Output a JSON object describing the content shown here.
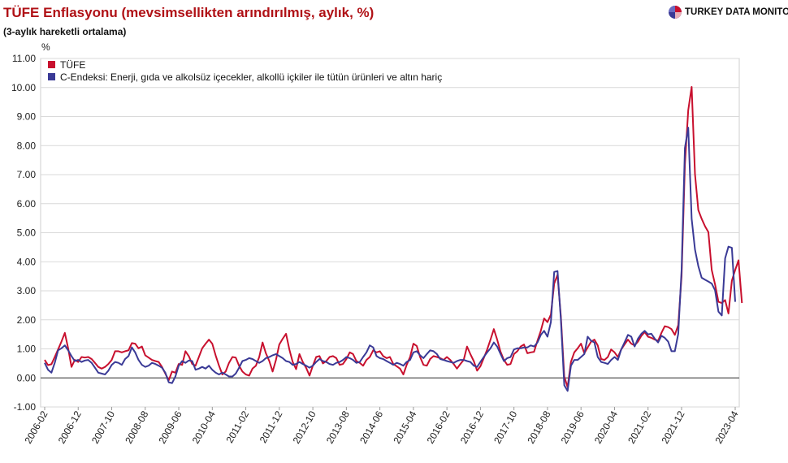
{
  "header": {
    "title": "TÜFE Enflasyonu (mevsimsellikten arındırılmış, aylık, %)",
    "subtitle": "(3-aylık hareketli ortalama)",
    "brand": "TURKEY DATA MONITOR"
  },
  "colors": {
    "tufe": "#c8102e",
    "core": "#3a3a96",
    "grid": "#d9d9d9",
    "zero": "#555555"
  },
  "chart_data": {
    "type": "line",
    "ylabel": "%",
    "xlabel": "",
    "ylim": [
      -1,
      11
    ],
    "yticks": [
      "11.00",
      "10.00",
      "9.00",
      "8.00",
      "7.00",
      "6.00",
      "5.00",
      "4.00",
      "3.00",
      "2.00",
      "1.00",
      "0.00",
      "-1.00"
    ],
    "x_start": "2006-02",
    "x_end": "2023-04",
    "xticks": [
      "2006-02",
      "2006-12",
      "2007-10",
      "2008-08",
      "2009-06",
      "2010-04",
      "2011-02",
      "2011-12",
      "2012-10",
      "2013-08",
      "2014-06",
      "2015-04",
      "2016-02",
      "2016-12",
      "2017-10",
      "2018-08",
      "2019-06",
      "2020-04",
      "2021-02",
      "2021-12",
      "2023-04"
    ],
    "grid": true,
    "legend_position": "top-left",
    "series": [
      {
        "name": "TÜFE",
        "color": "#c8102e",
        "values": [
          0.62,
          0.44,
          0.47,
          0.72,
          0.98,
          1.25,
          1.55,
          1.02,
          0.38,
          0.62,
          0.55,
          0.72,
          0.7,
          0.72,
          0.65,
          0.52,
          0.38,
          0.32,
          0.38,
          0.48,
          0.62,
          0.92,
          0.92,
          0.88,
          0.92,
          0.95,
          1.2,
          1.18,
          1.02,
          1.08,
          0.78,
          0.7,
          0.62,
          0.58,
          0.55,
          0.38,
          0.15,
          -0.08,
          0.22,
          0.18,
          0.48,
          0.45,
          0.92,
          0.75,
          0.48,
          0.42,
          0.72,
          1.02,
          1.18,
          1.32,
          1.18,
          0.78,
          0.42,
          0.12,
          0.22,
          0.52,
          0.72,
          0.7,
          0.42,
          0.22,
          0.12,
          0.08,
          0.32,
          0.42,
          0.72,
          1.22,
          0.85,
          0.58,
          0.22,
          0.62,
          1.15,
          1.35,
          1.52,
          0.98,
          0.55,
          0.3,
          0.82,
          0.55,
          0.35,
          0.08,
          0.42,
          0.72,
          0.75,
          0.5,
          0.58,
          0.72,
          0.75,
          0.68,
          0.45,
          0.48,
          0.65,
          0.88,
          0.82,
          0.58,
          0.52,
          0.42,
          0.62,
          0.72,
          0.95,
          0.88,
          0.92,
          0.75,
          0.68,
          0.72,
          0.48,
          0.4,
          0.32,
          0.12,
          0.45,
          0.72,
          1.18,
          1.1,
          0.72,
          0.45,
          0.42,
          0.65,
          0.75,
          0.72,
          0.68,
          0.62,
          0.72,
          0.62,
          0.48,
          0.32,
          0.48,
          0.62,
          1.08,
          0.82,
          0.58,
          0.25,
          0.4,
          0.68,
          0.98,
          1.32,
          1.68,
          1.32,
          0.9,
          0.62,
          0.45,
          0.48,
          0.82,
          0.92,
          1.08,
          1.15,
          0.85,
          0.88,
          0.9,
          1.28,
          1.62,
          2.05,
          1.92,
          2.18,
          3.25,
          3.55,
          2.12,
          0.05,
          -0.32,
          0.55,
          0.88,
          1.02,
          1.18,
          0.85,
          1.05,
          1.25,
          1.32,
          1.12,
          0.65,
          0.62,
          0.72,
          0.98,
          0.88,
          0.72,
          0.98,
          1.15,
          1.32,
          1.18,
          1.12,
          1.25,
          1.45,
          1.58,
          1.42,
          1.38,
          1.32,
          1.28,
          1.55,
          1.78,
          1.75,
          1.68,
          1.48,
          1.82,
          3.5,
          7.35,
          9.22,
          10.02,
          7.02,
          5.78,
          5.48,
          5.22,
          5.02,
          3.72,
          3.22,
          2.62,
          2.58,
          2.68,
          2.22,
          3.35,
          3.72,
          4.05,
          2.58
        ]
      },
      {
        "name": "C-Endeksi: Enerji, gıda ve alkolsüz içecekler, alkollü içkiler ile tütün ürünleri ve altın hariç",
        "color": "#3a3a96",
        "values": [
          0.52,
          0.28,
          0.18,
          0.52,
          0.95,
          1.02,
          1.12,
          0.95,
          0.75,
          0.58,
          0.62,
          0.55,
          0.6,
          0.62,
          0.52,
          0.35,
          0.18,
          0.15,
          0.12,
          0.25,
          0.45,
          0.55,
          0.52,
          0.45,
          0.65,
          0.75,
          1.05,
          0.88,
          0.62,
          0.45,
          0.38,
          0.42,
          0.52,
          0.48,
          0.42,
          0.35,
          0.18,
          -0.15,
          -0.18,
          0.05,
          0.42,
          0.58,
          0.52,
          0.6,
          0.58,
          0.28,
          0.32,
          0.38,
          0.32,
          0.42,
          0.28,
          0.18,
          0.12,
          0.18,
          0.12,
          0.05,
          0.05,
          0.15,
          0.35,
          0.58,
          0.62,
          0.68,
          0.65,
          0.58,
          0.52,
          0.58,
          0.68,
          0.72,
          0.78,
          0.82,
          0.75,
          0.68,
          0.58,
          0.55,
          0.45,
          0.48,
          0.55,
          0.48,
          0.42,
          0.35,
          0.42,
          0.55,
          0.65,
          0.58,
          0.55,
          0.48,
          0.45,
          0.52,
          0.55,
          0.62,
          0.72,
          0.68,
          0.62,
          0.52,
          0.55,
          0.72,
          0.88,
          1.12,
          1.05,
          0.75,
          0.68,
          0.65,
          0.58,
          0.52,
          0.45,
          0.52,
          0.48,
          0.42,
          0.55,
          0.62,
          0.88,
          0.92,
          0.78,
          0.68,
          0.82,
          0.95,
          0.92,
          0.82,
          0.65,
          0.62,
          0.58,
          0.55,
          0.52,
          0.58,
          0.62,
          0.62,
          0.58,
          0.55,
          0.42,
          0.38,
          0.55,
          0.72,
          0.88,
          1.02,
          1.22,
          1.08,
          0.82,
          0.58,
          0.68,
          0.72,
          0.98,
          1.02,
          1.02,
          1.05,
          1.05,
          1.12,
          1.08,
          1.22,
          1.48,
          1.62,
          1.42,
          1.92,
          3.65,
          3.68,
          2.02,
          -0.25,
          -0.45,
          0.42,
          0.62,
          0.62,
          0.72,
          0.82,
          1.42,
          1.28,
          1.22,
          0.72,
          0.55,
          0.52,
          0.48,
          0.62,
          0.72,
          0.62,
          0.98,
          1.22,
          1.48,
          1.42,
          1.08,
          1.35,
          1.52,
          1.62,
          1.5,
          1.52,
          1.35,
          1.22,
          1.45,
          1.38,
          1.25,
          0.92,
          0.92,
          1.52,
          3.72,
          7.92,
          8.62,
          5.48,
          4.42,
          3.85,
          3.45,
          3.38,
          3.32,
          3.25,
          3.02,
          2.28,
          2.15,
          4.12,
          4.52,
          4.48,
          2.62
        ]
      }
    ]
  }
}
